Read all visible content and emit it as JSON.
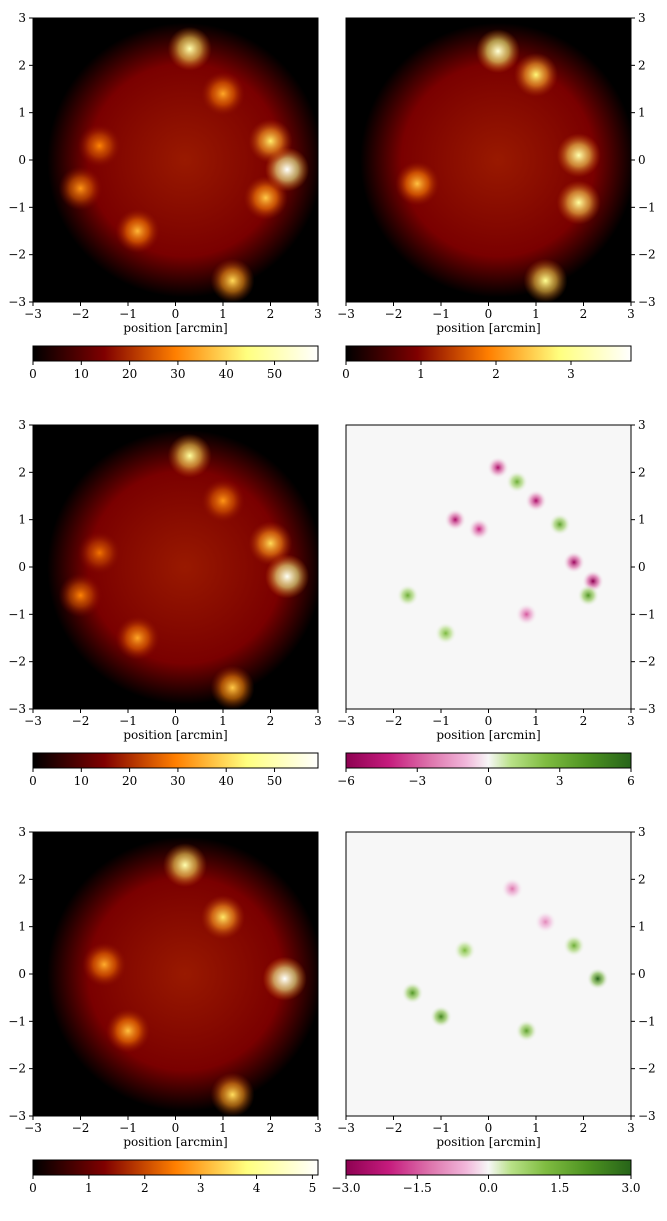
{
  "chart_data": [
    {
      "type": "heatmap",
      "id": "p1",
      "xlabel": "position [arcmin]",
      "ylabel": "",
      "xlim": [
        -3,
        3
      ],
      "ylim": [
        -3,
        3
      ],
      "xticks": [
        "−3",
        "−2",
        "−1",
        "0",
        "1",
        "2",
        "3"
      ],
      "yticks": [
        "−3",
        "−2",
        "−1",
        "0",
        "1",
        "2",
        "3"
      ],
      "y_axis_side": "left",
      "colormap": "afmhot",
      "colorbar": {
        "min": 0,
        "max": 59,
        "ticks": [
          "0",
          "10",
          "20",
          "30",
          "40",
          "50"
        ],
        "tick_values": [
          0,
          10,
          20,
          30,
          40,
          50
        ]
      },
      "blobs": [
        {
          "x": 0.3,
          "y": 2.35,
          "v": 50
        },
        {
          "x": 2.35,
          "y": -0.2,
          "v": 59
        },
        {
          "x": 2.0,
          "y": 0.4,
          "v": 42
        },
        {
          "x": 1.2,
          "y": -2.55,
          "v": 40
        },
        {
          "x": -0.8,
          "y": -1.5,
          "v": 36
        },
        {
          "x": -2.0,
          "y": -0.6,
          "v": 32
        },
        {
          "x": -1.6,
          "y": 0.3,
          "v": 30
        },
        {
          "x": 1.0,
          "y": 1.4,
          "v": 34
        },
        {
          "x": 1.9,
          "y": -0.8,
          "v": 38
        }
      ]
    },
    {
      "type": "heatmap",
      "id": "p2",
      "xlabel": "position [arcmin]",
      "ylabel": "",
      "xlim": [
        -3,
        3
      ],
      "ylim": [
        -3,
        3
      ],
      "xticks": [
        "−3",
        "−2",
        "−1",
        "0",
        "1",
        "2",
        "3"
      ],
      "yticks": [
        "−3",
        "−2",
        "−1",
        "0",
        "1",
        "2",
        "3"
      ],
      "y_axis_side": "right",
      "colormap": "afmhot",
      "colorbar": {
        "min": 0,
        "max": 3.8,
        "ticks": [
          "0",
          "1",
          "2",
          "3"
        ],
        "tick_values": [
          0,
          1,
          2,
          3
        ]
      },
      "blobs": [
        {
          "x": 0.2,
          "y": 2.3,
          "v": 3.5
        },
        {
          "x": 1.9,
          "y": 0.1,
          "v": 3.2
        },
        {
          "x": 1.2,
          "y": -2.55,
          "v": 3.0
        },
        {
          "x": 1.0,
          "y": 1.8,
          "v": 2.8
        },
        {
          "x": -1.5,
          "y": -0.5,
          "v": 2.4
        },
        {
          "x": 1.9,
          "y": -0.9,
          "v": 3.1
        }
      ]
    },
    {
      "type": "heatmap",
      "id": "p3",
      "xlabel": "position [arcmin]",
      "ylabel": "",
      "xlim": [
        -3,
        3
      ],
      "ylim": [
        -3,
        3
      ],
      "xticks": [
        "−3",
        "−2",
        "−1",
        "0",
        "1",
        "2",
        "3"
      ],
      "yticks": [
        "−3",
        "−2",
        "−1",
        "0",
        "1",
        "2",
        "3"
      ],
      "y_axis_side": "left",
      "colormap": "afmhot",
      "colorbar": {
        "min": 0,
        "max": 59,
        "ticks": [
          "0",
          "10",
          "20",
          "30",
          "40",
          "50"
        ],
        "tick_values": [
          0,
          10,
          20,
          30,
          40,
          50
        ]
      },
      "blobs": [
        {
          "x": 0.3,
          "y": 2.35,
          "v": 48
        },
        {
          "x": 2.35,
          "y": -0.2,
          "v": 58
        },
        {
          "x": 2.0,
          "y": 0.5,
          "v": 40
        },
        {
          "x": 1.2,
          "y": -2.55,
          "v": 38
        },
        {
          "x": -0.8,
          "y": -1.5,
          "v": 34
        },
        {
          "x": -2.0,
          "y": -0.6,
          "v": 30
        },
        {
          "x": -1.6,
          "y": 0.3,
          "v": 28
        },
        {
          "x": 1.0,
          "y": 1.4,
          "v": 32
        }
      ]
    },
    {
      "type": "heatmap",
      "id": "p4",
      "xlabel": "position [arcmin]",
      "ylabel": "",
      "xlim": [
        -3,
        3
      ],
      "ylim": [
        -3,
        3
      ],
      "xticks": [
        "−3",
        "−2",
        "−1",
        "0",
        "1",
        "2",
        "3"
      ],
      "yticks": [
        "−3",
        "−2",
        "−1",
        "0",
        "1",
        "2",
        "3"
      ],
      "y_axis_side": "right",
      "colormap": "PiYG",
      "colorbar": {
        "min": -6,
        "max": 6,
        "ticks": [
          "−6",
          "−3",
          "0",
          "3",
          "6"
        ],
        "tick_values": [
          -6,
          -3,
          0,
          3,
          6
        ]
      },
      "blobs": [
        {
          "x": 0.2,
          "y": 2.1,
          "v": -5
        },
        {
          "x": 1.0,
          "y": 1.4,
          "v": -5
        },
        {
          "x": 2.2,
          "y": -0.3,
          "v": -6
        },
        {
          "x": 1.8,
          "y": 0.1,
          "v": -5.5
        },
        {
          "x": 2.1,
          "y": -0.6,
          "v": 4
        },
        {
          "x": 1.5,
          "y": 0.9,
          "v": 3.5
        },
        {
          "x": -0.7,
          "y": 1.0,
          "v": -5
        },
        {
          "x": 0.8,
          "y": -1.0,
          "v": -3
        },
        {
          "x": -1.7,
          "y": -0.6,
          "v": 3
        },
        {
          "x": -0.9,
          "y": -1.4,
          "v": 2.5
        },
        {
          "x": 0.6,
          "y": 1.8,
          "v": 3
        },
        {
          "x": -0.2,
          "y": 0.8,
          "v": -4
        }
      ]
    },
    {
      "type": "heatmap",
      "id": "p5",
      "xlabel": "position [arcmin]",
      "ylabel": "",
      "xlim": [
        -3,
        3
      ],
      "ylim": [
        -3,
        3
      ],
      "xticks": [
        "−3",
        "−2",
        "−1",
        "0",
        "1",
        "2",
        "3"
      ],
      "yticks": [
        "−3",
        "−2",
        "−1",
        "0",
        "1",
        "2",
        "3"
      ],
      "y_axis_side": "left",
      "colormap": "afmhot",
      "colorbar": {
        "min": 0,
        "max": 5.1,
        "ticks": [
          "0",
          "1",
          "2",
          "3",
          "4",
          "5"
        ],
        "tick_values": [
          0,
          1,
          2,
          3,
          4,
          5
        ]
      },
      "blobs": [
        {
          "x": 0.2,
          "y": 2.3,
          "v": 4.3
        },
        {
          "x": 2.3,
          "y": -0.1,
          "v": 5.1
        },
        {
          "x": 1.2,
          "y": -2.55,
          "v": 3.5
        },
        {
          "x": -1.0,
          "y": -1.2,
          "v": 3.2
        },
        {
          "x": 1.0,
          "y": 1.2,
          "v": 3.6
        },
        {
          "x": -1.5,
          "y": 0.2,
          "v": 3.0
        }
      ]
    },
    {
      "type": "heatmap",
      "id": "p6",
      "xlabel": "position [arcmin]",
      "ylabel": "",
      "xlim": [
        -3,
        3
      ],
      "ylim": [
        -3,
        3
      ],
      "xticks": [
        "−3",
        "−2",
        "−1",
        "0",
        "1",
        "2",
        "3"
      ],
      "yticks": [
        "−3",
        "−2",
        "−1",
        "0",
        "1",
        "2",
        "3"
      ],
      "y_axis_side": "right",
      "colormap": "PiYG",
      "colorbar": {
        "min": -3.0,
        "max": 3.0,
        "ticks": [
          "−3.0",
          "−1.5",
          "0.0",
          "1.5",
          "3.0"
        ],
        "tick_values": [
          -3,
          -1.5,
          0,
          1.5,
          3
        ]
      },
      "blobs": [
        {
          "x": 2.3,
          "y": -0.1,
          "v": 3.0
        },
        {
          "x": -1.0,
          "y": -0.9,
          "v": 2.3
        },
        {
          "x": -1.6,
          "y": -0.4,
          "v": 2.0
        },
        {
          "x": 0.8,
          "y": -1.2,
          "v": 1.8
        },
        {
          "x": 0.5,
          "y": 1.8,
          "v": -1.2
        },
        {
          "x": 1.2,
          "y": 1.1,
          "v": -1.0
        },
        {
          "x": -0.5,
          "y": 0.5,
          "v": 1.2
        },
        {
          "x": 1.8,
          "y": 0.6,
          "v": 1.5
        }
      ]
    }
  ]
}
